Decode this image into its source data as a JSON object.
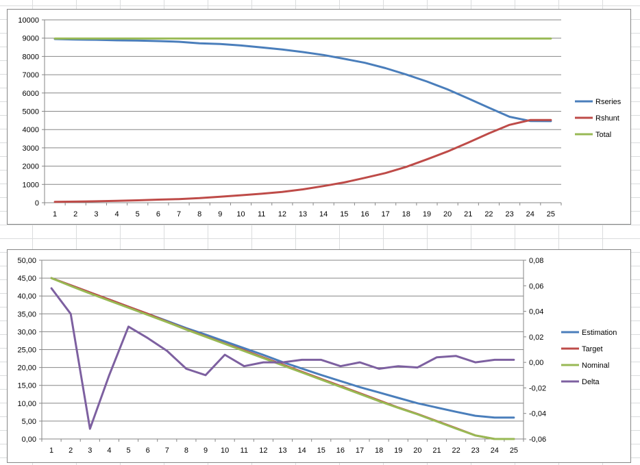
{
  "chart_data": [
    {
      "type": "line",
      "categories": [
        "1",
        "2",
        "3",
        "4",
        "5",
        "6",
        "7",
        "8",
        "9",
        "10",
        "11",
        "12",
        "13",
        "14",
        "15",
        "16",
        "17",
        "18",
        "19",
        "20",
        "21",
        "22",
        "23",
        "24",
        "25"
      ],
      "ylim": [
        0,
        10000
      ],
      "yticks": [
        0,
        1000,
        2000,
        3000,
        4000,
        5000,
        6000,
        7000,
        8000,
        9000,
        10000
      ],
      "ytick_labels": [
        "0",
        "1000",
        "2000",
        "3000",
        "4000",
        "5000",
        "6000",
        "7000",
        "8000",
        "9000",
        "10000"
      ],
      "grid": true,
      "legend": "right",
      "series": [
        {
          "name": "Rseries",
          "color": "#4a7ebb",
          "values": [
            8950,
            8920,
            8910,
            8880,
            8870,
            8840,
            8800,
            8720,
            8680,
            8600,
            8490,
            8380,
            8240,
            8080,
            7870,
            7650,
            7360,
            7010,
            6630,
            6200,
            5700,
            5200,
            4700,
            4470,
            4460
          ]
        },
        {
          "name": "Rshunt",
          "color": "#be4b48",
          "values": [
            50,
            60,
            80,
            100,
            130,
            170,
            200,
            250,
            330,
            410,
            490,
            590,
            730,
            910,
            1110,
            1360,
            1620,
            1960,
            2370,
            2800,
            3290,
            3790,
            4260,
            4520,
            4520
          ]
        },
        {
          "name": "Total",
          "color": "#98b954",
          "values": [
            8980,
            8980,
            8980,
            8980,
            8980,
            8980,
            8980,
            8980,
            8980,
            8980,
            8980,
            8980,
            8980,
            8980,
            8980,
            8980,
            8980,
            8980,
            8980,
            8980,
            8980,
            8980,
            8980,
            8980,
            8980
          ]
        }
      ]
    },
    {
      "type": "line",
      "categories": [
        "1",
        "2",
        "3",
        "4",
        "5",
        "6",
        "7",
        "8",
        "9",
        "10",
        "11",
        "12",
        "13",
        "14",
        "15",
        "16",
        "17",
        "18",
        "19",
        "20",
        "21",
        "22",
        "23",
        "24",
        "25"
      ],
      "ylim": [
        0,
        50
      ],
      "yticks": [
        0,
        5,
        10,
        15,
        20,
        25,
        30,
        35,
        40,
        45,
        50
      ],
      "ytick_labels": [
        "0,00",
        "5,00",
        "10,00",
        "15,00",
        "20,00",
        "25,00",
        "30,00",
        "35,00",
        "40,00",
        "45,00",
        "50,00"
      ],
      "y2lim": [
        -0.06,
        0.08
      ],
      "y2ticks": [
        -0.06,
        -0.04,
        -0.02,
        0,
        0.02,
        0.04,
        0.06,
        0.08
      ],
      "y2tick_labels": [
        "-0,06",
        "-0,04",
        "-0,02",
        "0,00",
        "0,02",
        "0,04",
        "0,06",
        "0,08"
      ],
      "grid": true,
      "legend": "right",
      "series": [
        {
          "name": "Estimation",
          "color": "#4a7ebb",
          "axis": "left",
          "values": [
            45.0,
            43.0,
            41.0,
            39.0,
            37.0,
            35.0,
            33.0,
            31.0,
            29.2,
            27.3,
            25.4,
            23.5,
            21.5,
            19.7,
            17.9,
            16.2,
            14.5,
            13.0,
            11.5,
            10.0,
            8.8,
            7.6,
            6.5,
            6.0,
            6.0
          ]
        },
        {
          "name": "Target",
          "color": "#be4b48",
          "axis": "left",
          "values": [
            45.0,
            43.0,
            41.0,
            39.0,
            37.0,
            35.0,
            32.8,
            30.7,
            28.7,
            26.7,
            24.8,
            22.8,
            20.8,
            18.8,
            16.8,
            14.8,
            12.8,
            10.8,
            8.8,
            7.0,
            5.0,
            3.0,
            1.0,
            0.0,
            0.0
          ]
        },
        {
          "name": "Nominal",
          "color": "#98b954",
          "axis": "left",
          "values": [
            45.0,
            42.8,
            40.7,
            38.7,
            36.7,
            34.7,
            32.7,
            30.6,
            28.6,
            26.6,
            24.6,
            22.6,
            20.6,
            18.6,
            16.6,
            14.6,
            12.6,
            10.6,
            8.7,
            6.9,
            4.9,
            2.9,
            1.0,
            0.0,
            0.0
          ]
        },
        {
          "name": "Delta",
          "color": "#7d60a0",
          "axis": "right",
          "values": [
            0.058,
            0.038,
            -0.052,
            -0.01,
            0.028,
            0.019,
            0.009,
            -0.005,
            -0.01,
            0.006,
            -0.003,
            0.0,
            0.0,
            0.002,
            0.002,
            -0.003,
            0.0,
            -0.005,
            -0.003,
            -0.004,
            0.004,
            0.005,
            0.0,
            0.002,
            0.002
          ]
        }
      ]
    }
  ]
}
